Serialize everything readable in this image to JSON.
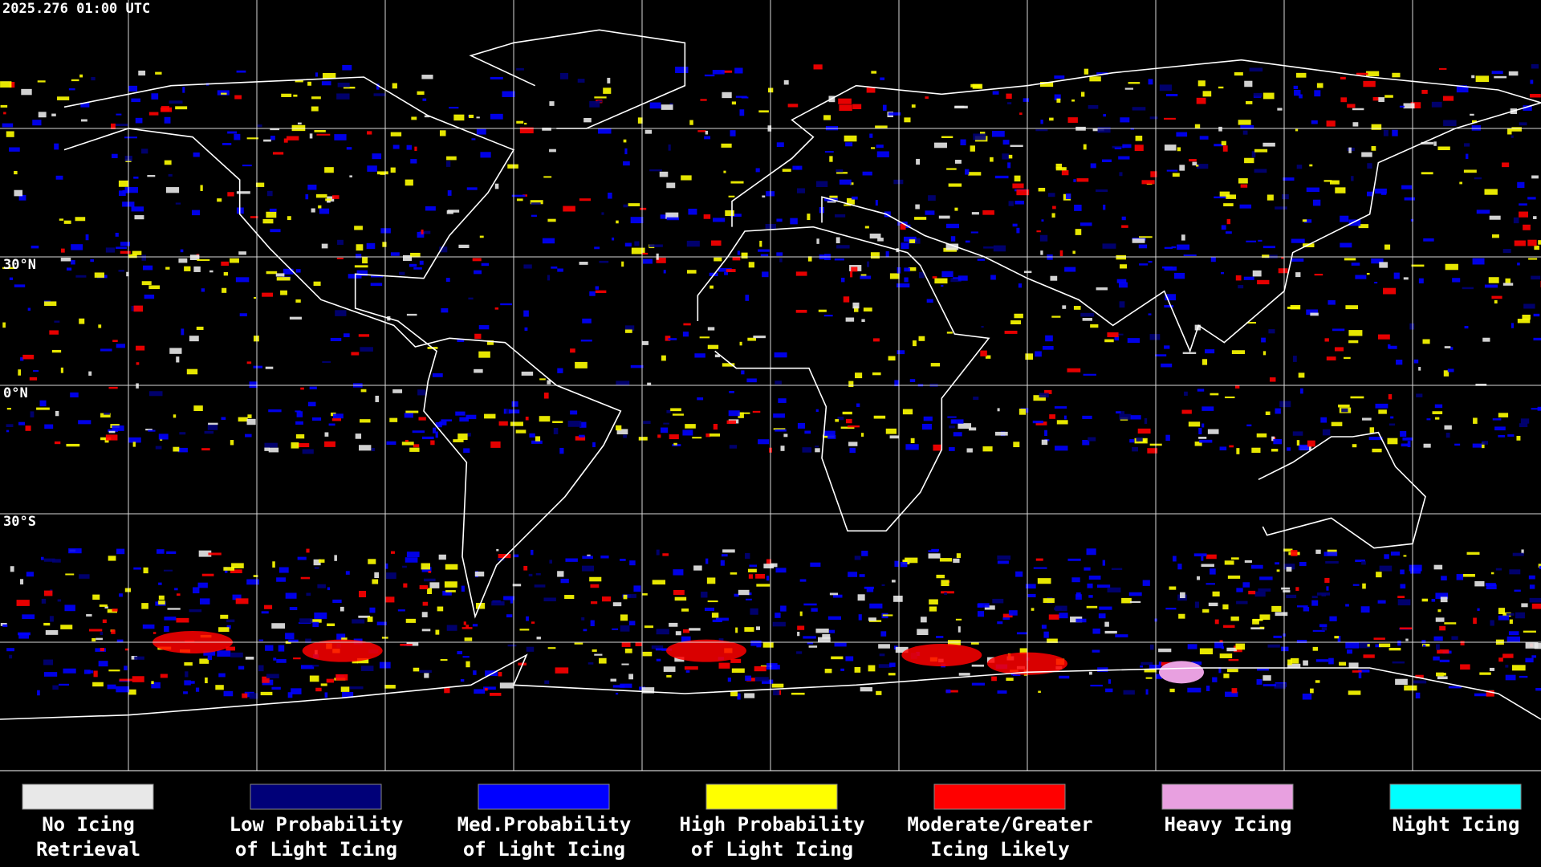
{
  "header": {
    "timestamp": "2025.276 01:00 UTC"
  },
  "map": {
    "latitude_labels": [
      "30°N",
      "0°N",
      "30°S"
    ]
  },
  "legend": {
    "items": [
      {
        "lines": [
          "No Icing",
          "Retrieval"
        ],
        "color": "#e8e8e8"
      },
      {
        "lines": [
          "Low Probability",
          "of Light Icing"
        ],
        "color": "#000078"
      },
      {
        "lines": [
          "Med.Probability",
          "of Light Icing"
        ],
        "color": "#0000ff"
      },
      {
        "lines": [
          "High Probability",
          "of Light Icing"
        ],
        "color": "#ffff00"
      },
      {
        "lines": [
          "Moderate/Greater",
          "Icing Likely"
        ],
        "color": "#ff0000"
      },
      {
        "lines": [
          "Heavy Icing"
        ],
        "color": "#e8a0e0"
      },
      {
        "lines": [
          "Night Icing"
        ],
        "color": "#00ffff"
      }
    ]
  }
}
